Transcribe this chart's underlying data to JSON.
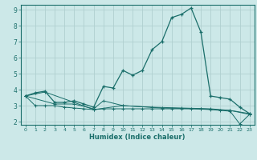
{
  "xlabel": "Humidex (Indice chaleur)",
  "bg_color": "#cce8e8",
  "grid_color": "#b0d0d0",
  "line_color": "#1a6e6a",
  "xlim": [
    -0.5,
    23.5
  ],
  "ylim": [
    1.8,
    9.3
  ],
  "yticks": [
    2,
    3,
    4,
    5,
    6,
    7,
    8,
    9
  ],
  "xticks": [
    0,
    1,
    2,
    3,
    4,
    5,
    6,
    7,
    8,
    9,
    10,
    11,
    12,
    13,
    14,
    15,
    16,
    17,
    18,
    19,
    20,
    21,
    22,
    23
  ],
  "series1": {
    "x": [
      0,
      1,
      2,
      3,
      4,
      5,
      6,
      7,
      8,
      9,
      10,
      11,
      12,
      13,
      14,
      15,
      16,
      17,
      18,
      19,
      20,
      21,
      22,
      23
    ],
    "y": [
      3.6,
      3.8,
      3.9,
      3.2,
      3.2,
      3.3,
      3.1,
      2.9,
      4.2,
      4.1,
      5.2,
      4.9,
      5.2,
      6.5,
      7.0,
      8.5,
      8.7,
      9.1,
      7.6,
      3.6,
      3.5,
      3.4,
      2.9,
      2.5
    ]
  },
  "series2": {
    "x": [
      0,
      1,
      2,
      3,
      4,
      5,
      6,
      7,
      8,
      9,
      10,
      11,
      12,
      13,
      14,
      15,
      16,
      17,
      18,
      19,
      20,
      21,
      22,
      23
    ],
    "y": [
      3.6,
      3.0,
      3.0,
      3.0,
      2.9,
      2.85,
      2.8,
      2.75,
      2.8,
      2.8,
      2.8,
      2.8,
      2.8,
      2.8,
      2.8,
      2.8,
      2.8,
      2.8,
      2.78,
      2.75,
      2.7,
      2.65,
      1.85,
      2.45
    ]
  },
  "series3": {
    "x": [
      0,
      3,
      5,
      7,
      8,
      10,
      13,
      16,
      19,
      21,
      23
    ],
    "y": [
      3.6,
      3.1,
      3.1,
      2.8,
      3.3,
      3.0,
      2.9,
      2.85,
      2.8,
      2.7,
      2.5
    ]
  },
  "series4": {
    "x": [
      0,
      2,
      5,
      7,
      10,
      14,
      18,
      21,
      23
    ],
    "y": [
      3.6,
      3.85,
      3.2,
      2.75,
      3.0,
      2.85,
      2.8,
      2.7,
      2.45
    ]
  }
}
